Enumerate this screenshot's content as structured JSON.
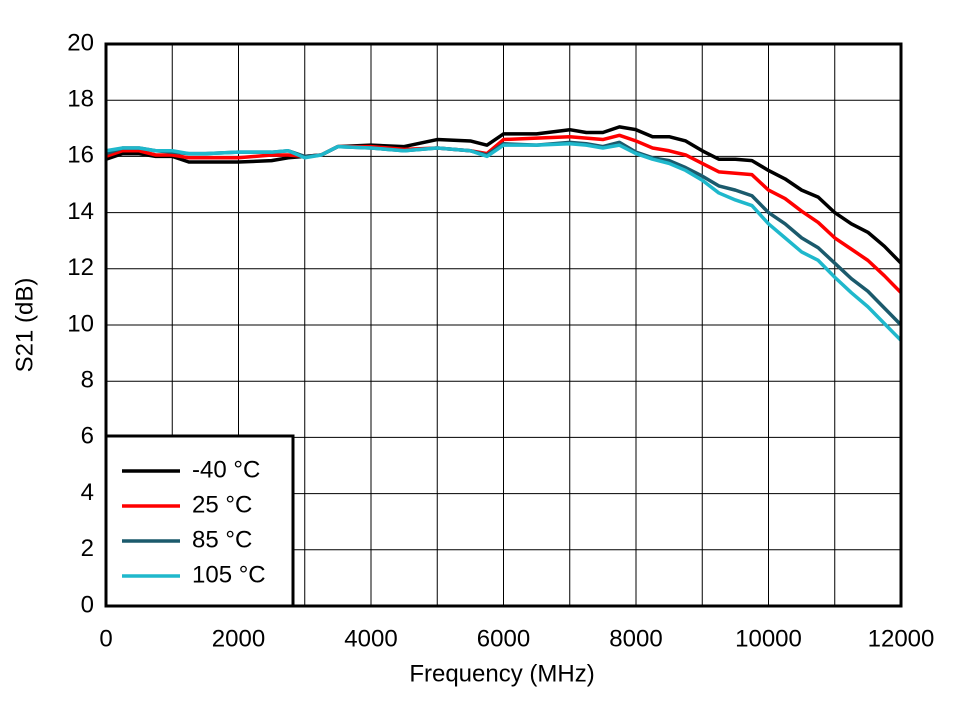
{
  "chart_data": {
    "type": "line",
    "x_label": "Frequency (MHz)",
    "y_label": "S21 (dB)",
    "x": [
      0,
      250,
      500,
      750,
      1000,
      1250,
      1500,
      2000,
      2500,
      2750,
      3000,
      3250,
      3500,
      4000,
      4500,
      5000,
      5500,
      5750,
      6000,
      6500,
      7000,
      7250,
      7500,
      7750,
      8000,
      8250,
      8500,
      8750,
      9000,
      9250,
      9500,
      9750,
      10000,
      10250,
      10500,
      10750,
      11000,
      11250,
      11500,
      11750,
      12000
    ],
    "series": [
      {
        "name": "-40 °C",
        "color": "#000000",
        "values": [
          15.9,
          16.1,
          16.1,
          16.0,
          16.0,
          15.8,
          15.8,
          15.8,
          15.85,
          15.95,
          16.0,
          16.05,
          16.35,
          16.4,
          16.35,
          16.6,
          16.55,
          16.4,
          16.8,
          16.8,
          16.95,
          16.85,
          16.85,
          17.05,
          16.95,
          16.7,
          16.7,
          16.55,
          16.2,
          15.9,
          15.9,
          15.85,
          15.5,
          15.2,
          14.8,
          14.55,
          14.0,
          13.6,
          13.3,
          12.8,
          12.2
        ]
      },
      {
        "name": "25 °C",
        "color": "#ff0000",
        "values": [
          16.0,
          16.2,
          16.2,
          16.05,
          16.05,
          15.95,
          15.95,
          15.95,
          16.05,
          16.05,
          16.0,
          16.05,
          16.35,
          16.35,
          16.25,
          16.3,
          16.2,
          16.1,
          16.6,
          16.65,
          16.7,
          16.65,
          16.6,
          16.75,
          16.55,
          16.3,
          16.2,
          16.05,
          15.75,
          15.45,
          15.4,
          15.35,
          14.8,
          14.5,
          14.05,
          13.65,
          13.1,
          12.7,
          12.3,
          11.75,
          11.15
        ]
      },
      {
        "name": "85 °C",
        "color": "#1b5a6c",
        "values": [
          16.1,
          16.3,
          16.3,
          16.2,
          16.15,
          16.1,
          16.1,
          16.15,
          16.15,
          16.2,
          16.0,
          16.05,
          16.35,
          16.3,
          16.2,
          16.3,
          16.2,
          16.05,
          16.45,
          16.4,
          16.5,
          16.45,
          16.35,
          16.5,
          16.15,
          15.95,
          15.85,
          15.6,
          15.3,
          14.95,
          14.8,
          14.6,
          14.0,
          13.6,
          13.1,
          12.75,
          12.2,
          11.65,
          11.2,
          10.6,
          10.0
        ]
      },
      {
        "name": "105 °C",
        "color": "#1fb8cc",
        "values": [
          16.2,
          16.3,
          16.3,
          16.2,
          16.2,
          16.1,
          16.1,
          16.15,
          16.15,
          16.2,
          15.95,
          16.05,
          16.35,
          16.3,
          16.2,
          16.3,
          16.2,
          16.0,
          16.4,
          16.4,
          16.45,
          16.4,
          16.3,
          16.4,
          16.1,
          15.9,
          15.75,
          15.5,
          15.15,
          14.7,
          14.45,
          14.25,
          13.6,
          13.1,
          12.6,
          12.3,
          11.7,
          11.15,
          10.65,
          10.05,
          9.45
        ]
      }
    ],
    "xlim": [
      0,
      12000
    ],
    "xticks": [
      0,
      2000,
      4000,
      6000,
      8000,
      10000,
      12000
    ],
    "xminorticks": [
      1000,
      3000,
      5000,
      7000,
      9000,
      11000
    ],
    "ylim": [
      0,
      20
    ],
    "yticks": [
      0,
      2,
      4,
      6,
      8,
      10,
      12,
      14,
      16,
      18,
      20
    ],
    "grid": true,
    "legend": "lower left"
  }
}
